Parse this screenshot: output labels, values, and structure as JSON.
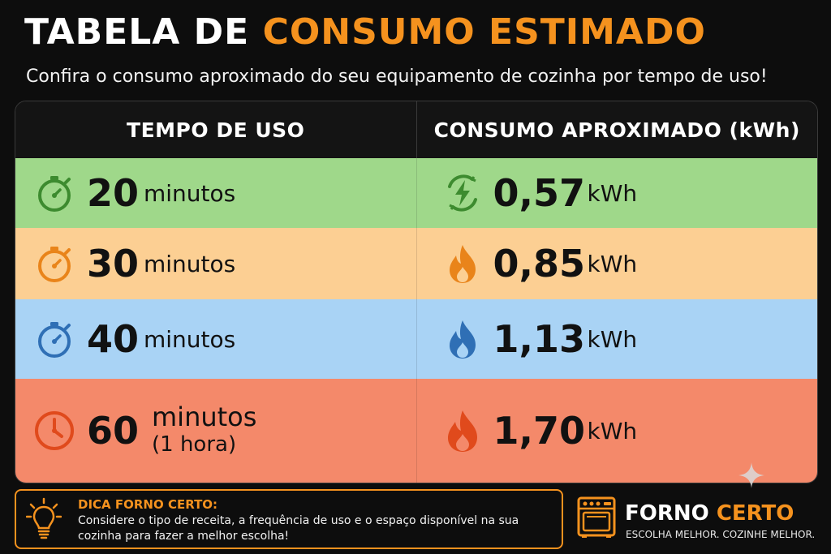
{
  "header": {
    "title_white": "TABELA DE",
    "title_orange": "CONSUMO ESTIMADO",
    "subtitle": "Confira o consumo aproximado do seu equipamento de cozinha por tempo de uso!"
  },
  "table": {
    "col_time": "TEMPO DE USO",
    "col_consumption": "CONSUMO APROXIMADO (kWh)",
    "rows": [
      {
        "time": "20",
        "unit": "minutos",
        "kwh": "0,57",
        "kwh_unit": "kWh",
        "time_icon": "stopwatch-icon",
        "power_icon": "lightning-icon",
        "color": "#9fd88a"
      },
      {
        "time": "30",
        "unit": "minutos",
        "kwh": "0,85",
        "kwh_unit": "kWh",
        "time_icon": "stopwatch-icon",
        "power_icon": "flame-icon",
        "color": "#fccf93"
      },
      {
        "time": "40",
        "unit": "minutos",
        "kwh": "1,13",
        "kwh_unit": "kWh",
        "time_icon": "stopwatch-icon",
        "power_icon": "flame-icon",
        "color": "#a9d3f5"
      },
      {
        "time": "60",
        "unit": "minutos",
        "unit_note": "(1 hora)",
        "kwh": "1,70",
        "kwh_unit": "kWh",
        "time_icon": "clock-icon",
        "power_icon": "flame-icon",
        "color": "#f4896a"
      }
    ]
  },
  "tip": {
    "heading": "DICA FORNO CERTO:",
    "text": "Considere o tipo de receita, a frequência de uso e o espaço disponível na sua cozinha para fazer a melhor escolha!"
  },
  "brand": {
    "name_white": "FORNO",
    "name_orange": "CERTO",
    "slogan": "ESCOLHA MELHOR. COZINHE MELHOR."
  },
  "colors": {
    "accent": "#f5921e",
    "green": "#3d8b2f",
    "orange": "#e9841a",
    "blue": "#2f6fb5",
    "red": "#e04a1c"
  }
}
